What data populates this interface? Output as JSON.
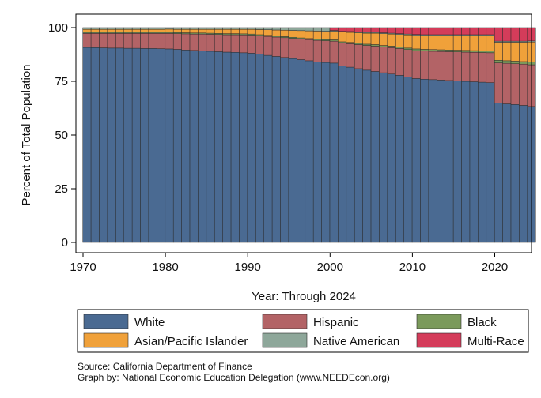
{
  "chart_data": {
    "type": "bar",
    "stacked": true,
    "title": "",
    "xlabel": "Year: Through 2024",
    "ylabel": "Percent of Total Population",
    "xlim": [
      1970,
      2024
    ],
    "ylim": [
      0,
      100
    ],
    "x_ticks": [
      1970,
      1980,
      1990,
      2000,
      2010,
      2020
    ],
    "y_ticks": [
      0,
      25,
      50,
      75,
      100
    ],
    "grid": false,
    "legend_position": "bottom",
    "x": [
      1970,
      1971,
      1972,
      1973,
      1974,
      1975,
      1976,
      1977,
      1978,
      1979,
      1980,
      1981,
      1982,
      1983,
      1984,
      1985,
      1986,
      1987,
      1988,
      1989,
      1990,
      1991,
      1992,
      1993,
      1994,
      1995,
      1996,
      1997,
      1998,
      1999,
      2000,
      2001,
      2002,
      2003,
      2004,
      2005,
      2006,
      2007,
      2008,
      2009,
      2010,
      2011,
      2012,
      2013,
      2014,
      2015,
      2016,
      2017,
      2018,
      2019,
      2020,
      2021,
      2022,
      2023,
      2024
    ],
    "series": [
      {
        "name": "White",
        "color": "#4a6a92",
        "values": [
          90.8,
          90.7,
          90.6,
          90.5,
          90.5,
          90.4,
          90.4,
          90.3,
          90.3,
          90.2,
          90.1,
          89.9,
          89.6,
          89.4,
          89.2,
          89.0,
          88.8,
          88.6,
          88.5,
          88.3,
          88.1,
          87.6,
          87.1,
          86.6,
          86.1,
          85.6,
          85.1,
          84.6,
          84.1,
          83.8,
          83.5,
          82.2,
          81.6,
          80.9,
          80.2,
          79.6,
          79.0,
          78.4,
          77.8,
          77.0,
          76.3,
          76.0,
          75.8,
          75.6,
          75.4,
          75.2,
          75.0,
          74.8,
          74.6,
          74.4,
          64.8,
          64.5,
          64.2,
          63.8,
          63.3
        ]
      },
      {
        "name": "Hispanic",
        "color": "#b36366",
        "values": [
          6.5,
          6.6,
          6.7,
          6.8,
          6.8,
          6.9,
          6.9,
          7.0,
          7.0,
          7.1,
          7.2,
          7.3,
          7.5,
          7.6,
          7.8,
          7.9,
          8.0,
          8.1,
          8.2,
          8.3,
          8.4,
          8.6,
          8.8,
          9.0,
          9.2,
          9.4,
          9.6,
          9.8,
          10.0,
          10.1,
          10.2,
          10.6,
          10.9,
          11.2,
          11.5,
          11.8,
          12.0,
          12.3,
          12.5,
          12.8,
          13.0,
          13.1,
          13.2,
          13.3,
          13.4,
          13.5,
          13.6,
          13.7,
          13.8,
          13.9,
          18.8,
          18.9,
          19.0,
          19.2,
          19.4
        ]
      },
      {
        "name": "Black",
        "color": "#7b9a5b",
        "values": [
          0.5,
          0.5,
          0.5,
          0.5,
          0.5,
          0.5,
          0.5,
          0.5,
          0.5,
          0.5,
          0.5,
          0.5,
          0.5,
          0.5,
          0.5,
          0.5,
          0.5,
          0.5,
          0.5,
          0.5,
          0.5,
          0.5,
          0.5,
          0.5,
          0.5,
          0.5,
          0.5,
          0.5,
          0.5,
          0.5,
          0.6,
          0.6,
          0.6,
          0.6,
          0.6,
          0.7,
          0.7,
          0.7,
          0.7,
          0.7,
          0.8,
          0.8,
          0.8,
          0.8,
          0.8,
          0.8,
          0.8,
          0.8,
          0.8,
          0.8,
          1.2,
          1.2,
          1.2,
          1.2,
          1.3
        ]
      },
      {
        "name": "Asian/Pacific Islander",
        "color": "#f0a13a",
        "values": [
          1.4,
          1.4,
          1.4,
          1.4,
          1.4,
          1.4,
          1.4,
          1.4,
          1.4,
          1.4,
          1.5,
          1.5,
          1.6,
          1.7,
          1.7,
          1.8,
          1.9,
          2.0,
          2.0,
          2.1,
          2.2,
          2.4,
          2.6,
          2.8,
          3.0,
          3.2,
          3.4,
          3.6,
          3.8,
          3.9,
          4.0,
          4.5,
          4.7,
          4.9,
          5.1,
          5.3,
          5.5,
          5.6,
          5.8,
          6.1,
          6.3,
          6.4,
          6.5,
          6.6,
          6.7,
          6.8,
          6.9,
          7.0,
          7.1,
          7.2,
          8.4,
          8.6,
          8.8,
          9.0,
          9.3
        ]
      },
      {
        "name": "Native American",
        "color": "#8ea79a",
        "values": [
          0.8,
          0.8,
          0.8,
          0.8,
          0.8,
          0.8,
          0.8,
          0.8,
          0.8,
          0.8,
          0.7,
          0.8,
          0.8,
          0.8,
          0.8,
          0.8,
          0.8,
          0.8,
          0.8,
          0.8,
          0.8,
          0.9,
          1.0,
          1.1,
          1.2,
          1.3,
          1.4,
          1.5,
          1.6,
          1.7,
          0.4,
          0.4,
          0.4,
          0.4,
          0.4,
          0.4,
          0.4,
          0.4,
          0.4,
          0.4,
          0.4,
          0.4,
          0.4,
          0.4,
          0.4,
          0.4,
          0.4,
          0.4,
          0.4,
          0.4,
          0.5,
          0.5,
          0.5,
          0.5,
          0.5
        ]
      },
      {
        "name": "Multi-Race",
        "color": "#d43c5a",
        "values": [
          0,
          0,
          0,
          0,
          0,
          0,
          0,
          0,
          0,
          0,
          0,
          0,
          0,
          0,
          0,
          0,
          0,
          0,
          0,
          0,
          0,
          0,
          0,
          0,
          0,
          0,
          0,
          0,
          0,
          0,
          1.3,
          1.7,
          1.8,
          2.0,
          2.2,
          2.2,
          2.4,
          2.6,
          2.8,
          3.0,
          3.2,
          3.3,
          3.3,
          3.3,
          3.3,
          3.3,
          3.3,
          3.3,
          3.3,
          3.3,
          6.3,
          6.3,
          6.3,
          6.3,
          6.2
        ]
      }
    ]
  },
  "notes": {
    "source": "Source: California Department of Finance",
    "credit": "Graph by: National Economic Education Delegation (www.NEEDEcon.org)"
  }
}
